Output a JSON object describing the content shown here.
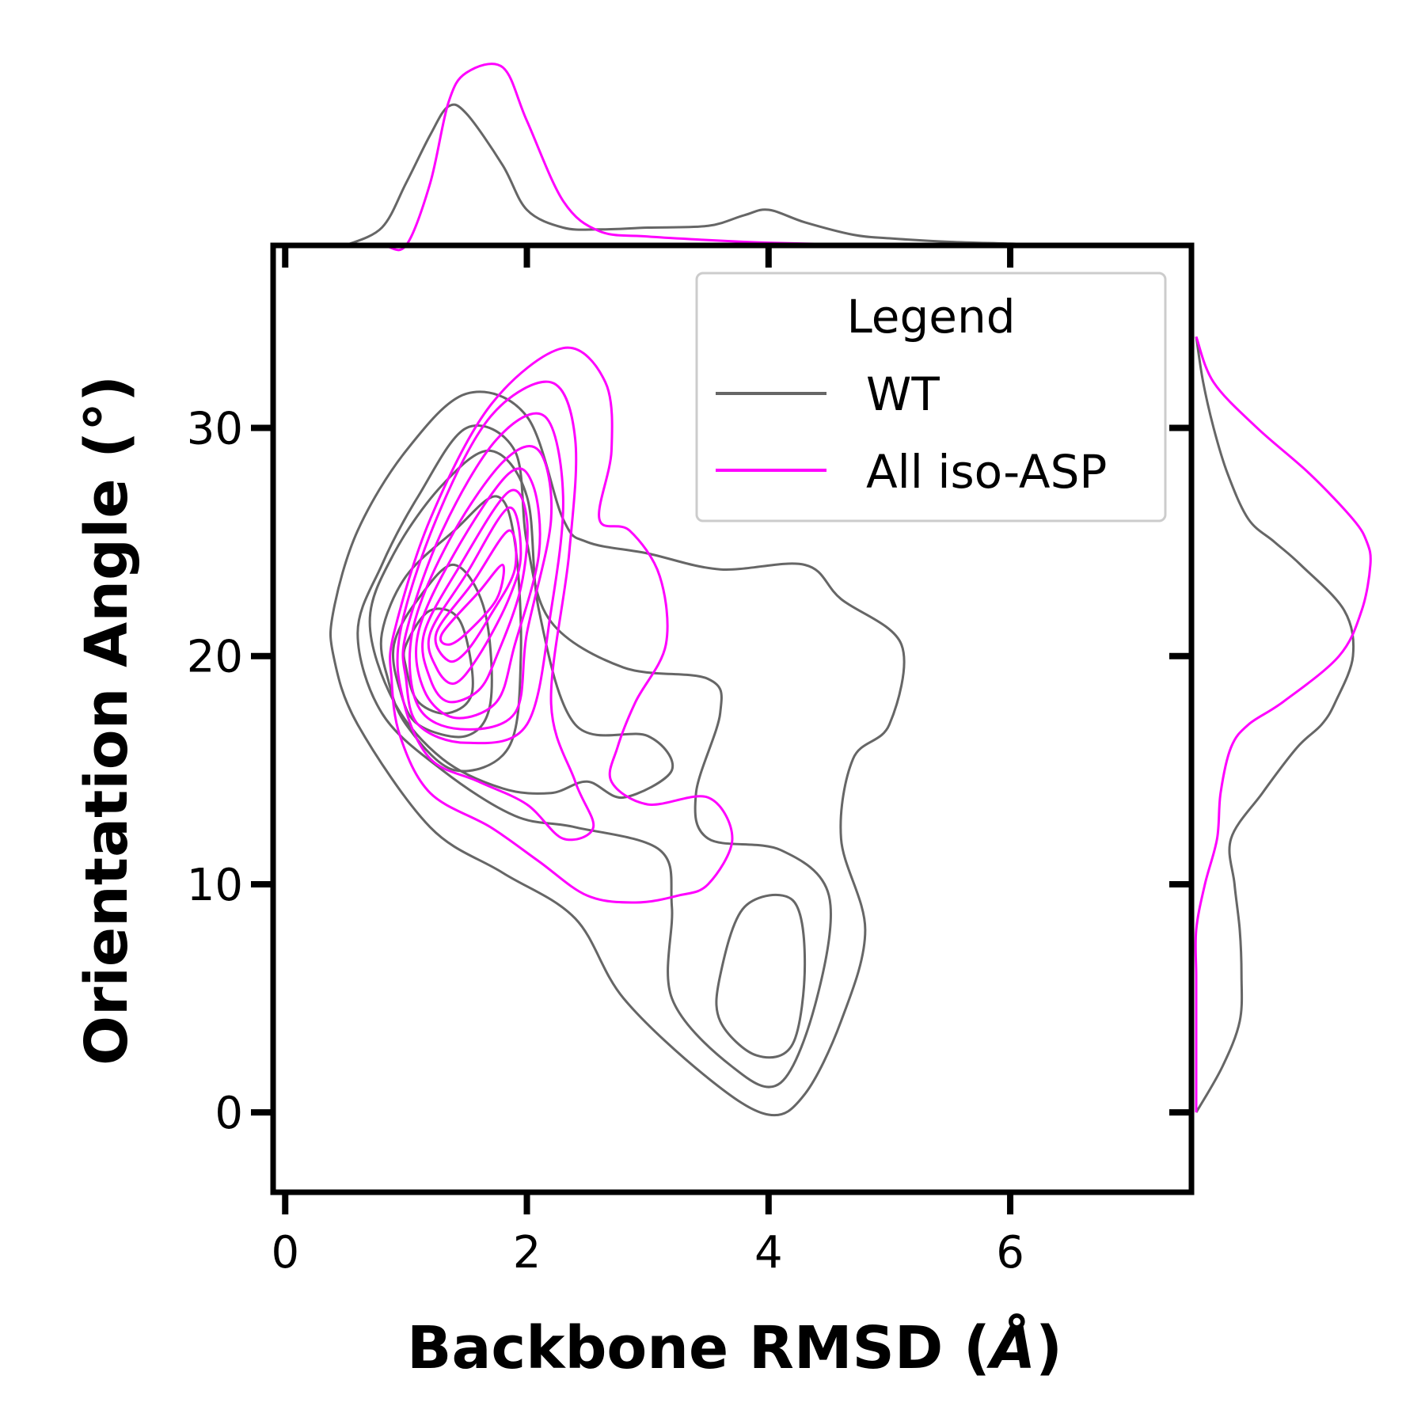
{
  "chart_data": {
    "type": "contour",
    "xlabel": "Backbone RMSD (",
    "xlabel_unit": "Å",
    "xlabel_close": ")",
    "ylabel": "Orientation Angle (°)",
    "xlim": [
      -0.1,
      7.5
    ],
    "ylim": [
      -3.5,
      38
    ],
    "xticks": [
      0,
      2,
      4,
      6
    ],
    "yticks": [
      0,
      10,
      20,
      30
    ],
    "grid": false,
    "legend": {
      "title": "Legend",
      "placement": "top-right",
      "entries": [
        {
          "label": "WT",
          "color": "#666666"
        },
        {
          "label": "All iso-ASP",
          "color": "#ff00ff"
        }
      ]
    },
    "series": [
      {
        "name": "WT",
        "color": "#666666",
        "contours": [
          [
            [
              0.4,
              22
            ],
            [
              0.6,
              25.5
            ],
            [
              1.0,
              29
            ],
            [
              1.5,
              31.5
            ],
            [
              2.0,
              30.5
            ],
            [
              2.3,
              26
            ],
            [
              2.5,
              25
            ],
            [
              3.0,
              24.5
            ],
            [
              3.6,
              23.8
            ],
            [
              4.3,
              24
            ],
            [
              4.6,
              22.5
            ],
            [
              5.1,
              20.5
            ],
            [
              5.0,
              17
            ],
            [
              4.7,
              15.5
            ],
            [
              4.6,
              12
            ],
            [
              4.8,
              8
            ],
            [
              4.6,
              4
            ],
            [
              4.3,
              0.8
            ],
            [
              4.0,
              -0.1
            ],
            [
              3.5,
              1.5
            ],
            [
              2.8,
              5
            ],
            [
              2.4,
              8.5
            ],
            [
              1.8,
              10.5
            ],
            [
              1.2,
              12.5
            ],
            [
              0.6,
              17
            ],
            [
              0.4,
              20
            ]
          ],
          [
            [
              0.6,
              21
            ],
            [
              0.8,
              24
            ],
            [
              1.1,
              27
            ],
            [
              1.5,
              30
            ],
            [
              1.9,
              29
            ],
            [
              2.0,
              25
            ],
            [
              2.2,
              21.5
            ],
            [
              2.8,
              19.5
            ],
            [
              3.5,
              19
            ],
            [
              3.6,
              17.5
            ],
            [
              3.4,
              14
            ],
            [
              3.5,
              12
            ],
            [
              4.1,
              11.5
            ],
            [
              4.5,
              9.5
            ],
            [
              4.4,
              5
            ],
            [
              4.1,
              1.3
            ],
            [
              3.7,
              2
            ],
            [
              3.2,
              5
            ],
            [
              3.2,
              9
            ],
            [
              3.1,
              11.5
            ],
            [
              2.4,
              12.5
            ],
            [
              1.9,
              13
            ],
            [
              1.3,
              15
            ],
            [
              0.8,
              17.5
            ]
          ],
          [
            [
              0.7,
              21.5
            ],
            [
              0.9,
              24.5
            ],
            [
              1.3,
              27.5
            ],
            [
              1.7,
              29
            ],
            [
              2.0,
              27
            ],
            [
              2.1,
              22
            ],
            [
              2.4,
              17
            ],
            [
              3.0,
              16.5
            ],
            [
              3.2,
              15
            ],
            [
              2.8,
              13.8
            ],
            [
              2.5,
              14.5
            ],
            [
              2.2,
              14
            ],
            [
              1.8,
              14.2
            ],
            [
              1.3,
              15.5
            ],
            [
              0.9,
              18
            ]
          ],
          [
            [
              3.6,
              6
            ],
            [
              3.8,
              9
            ],
            [
              4.2,
              9.3
            ],
            [
              4.3,
              6.5
            ],
            [
              4.2,
              3
            ],
            [
              3.9,
              2.5
            ],
            [
              3.6,
              4
            ]
          ],
          [
            [
              0.8,
              21
            ],
            [
              1.0,
              23.5
            ],
            [
              1.4,
              25.5
            ],
            [
              1.75,
              27
            ],
            [
              1.9,
              25
            ],
            [
              1.95,
              20
            ],
            [
              1.85,
              16
            ],
            [
              1.4,
              15
            ],
            [
              1.0,
              17
            ],
            [
              0.85,
              19
            ]
          ],
          [
            [
              0.9,
              20.5
            ],
            [
              1.1,
              22.5
            ],
            [
              1.4,
              24
            ],
            [
              1.65,
              22
            ],
            [
              1.7,
              18
            ],
            [
              1.5,
              16.5
            ],
            [
              1.1,
              17
            ],
            [
              0.95,
              18.5
            ]
          ],
          [
            [
              1.0,
              20.5
            ],
            [
              1.2,
              22
            ],
            [
              1.45,
              21.5
            ],
            [
              1.55,
              18.5
            ],
            [
              1.35,
              17.5
            ],
            [
              1.1,
              18
            ],
            [
              1.0,
              19.5
            ]
          ]
        ]
      },
      {
        "name": "All iso-ASP",
        "color": "#ff00ff",
        "contours": [
          [
            [
              0.9,
              21
            ],
            [
              1.2,
              26
            ],
            [
              1.7,
              31
            ],
            [
              2.3,
              33.5
            ],
            [
              2.65,
              32
            ],
            [
              2.7,
              29
            ],
            [
              2.6,
              26
            ],
            [
              2.85,
              25.5
            ],
            [
              3.1,
              23.5
            ],
            [
              3.15,
              20.5
            ],
            [
              2.9,
              18
            ],
            [
              2.75,
              16
            ],
            [
              2.7,
              14.5
            ],
            [
              3.0,
              13.5
            ],
            [
              3.5,
              13.8
            ],
            [
              3.7,
              12
            ],
            [
              3.5,
              10
            ],
            [
              3.25,
              9.5
            ],
            [
              2.9,
              9.2
            ],
            [
              2.5,
              9.5
            ],
            [
              2.1,
              11
            ],
            [
              1.7,
              12.5
            ],
            [
              1.2,
              14
            ],
            [
              0.95,
              16.5
            ],
            [
              0.88,
              19
            ]
          ],
          [
            [
              0.95,
              21
            ],
            [
              1.25,
              26
            ],
            [
              1.7,
              30.5
            ],
            [
              2.2,
              32
            ],
            [
              2.4,
              29.5
            ],
            [
              2.35,
              24.5
            ],
            [
              2.2,
              18
            ],
            [
              2.4,
              14.5
            ],
            [
              2.55,
              12.5
            ],
            [
              2.3,
              12
            ],
            [
              2.0,
              13.5
            ],
            [
              1.6,
              14.5
            ],
            [
              1.2,
              15.5
            ],
            [
              0.98,
              18
            ]
          ],
          [
            [
              1.0,
              21
            ],
            [
              1.3,
              25.5
            ],
            [
              1.75,
              29.5
            ],
            [
              2.15,
              30.5
            ],
            [
              2.3,
              27
            ],
            [
              2.2,
              22
            ],
            [
              2.0,
              17
            ],
            [
              1.5,
              16.2
            ],
            [
              1.1,
              17
            ],
            [
              1.0,
              19
            ]
          ],
          [
            [
              1.05,
              21
            ],
            [
              1.35,
              25
            ],
            [
              1.8,
              28.5
            ],
            [
              2.1,
              29
            ],
            [
              2.2,
              26
            ],
            [
              2.0,
              21
            ],
            [
              1.9,
              17.5
            ],
            [
              1.45,
              16.8
            ],
            [
              1.1,
              17.8
            ]
          ],
          [
            [
              1.1,
              21
            ],
            [
              1.4,
              24.5
            ],
            [
              1.85,
              28
            ],
            [
              2.05,
              27.5
            ],
            [
              2.1,
              24.5
            ],
            [
              1.9,
              20.5
            ],
            [
              1.75,
              18
            ],
            [
              1.4,
              17.3
            ],
            [
              1.15,
              18.5
            ]
          ],
          [
            [
              1.15,
              21
            ],
            [
              1.45,
              24
            ],
            [
              1.85,
              27.2
            ],
            [
              2.0,
              26
            ],
            [
              1.95,
              23
            ],
            [
              1.75,
              20
            ],
            [
              1.6,
              18.5
            ],
            [
              1.35,
              18
            ],
            [
              1.2,
              19
            ]
          ],
          [
            [
              1.2,
              21
            ],
            [
              1.5,
              23.6
            ],
            [
              1.85,
              26.5
            ],
            [
              1.95,
              24.5
            ],
            [
              1.85,
              22.5
            ],
            [
              1.6,
              20
            ],
            [
              1.4,
              18.8
            ],
            [
              1.25,
              19.5
            ]
          ],
          [
            [
              1.25,
              21
            ],
            [
              1.55,
              23.2
            ],
            [
              1.85,
              25.5
            ],
            [
              1.9,
              23.8
            ],
            [
              1.7,
              21.8
            ],
            [
              1.5,
              20.2
            ],
            [
              1.35,
              19.8
            ]
          ],
          [
            [
              1.3,
              21
            ],
            [
              1.6,
              22.8
            ],
            [
              1.8,
              24
            ],
            [
              1.75,
              22.5
            ],
            [
              1.5,
              21
            ],
            [
              1.35,
              20.5
            ]
          ]
        ]
      }
    ],
    "marginal_x": {
      "x": [
        0.5,
        0.8,
        1.0,
        1.2,
        1.35,
        1.5,
        1.8,
        2.0,
        2.3,
        2.6,
        3.0,
        3.5,
        3.8,
        4.0,
        4.3,
        4.7,
        5.0,
        5.5,
        6.0,
        6.5,
        7.5
      ],
      "series": [
        {
          "name": "WT",
          "color": "#666666",
          "values": [
            0.0,
            0.1,
            0.35,
            0.62,
            0.78,
            0.74,
            0.45,
            0.2,
            0.1,
            0.09,
            0.1,
            0.11,
            0.17,
            0.2,
            0.13,
            0.06,
            0.04,
            0.02,
            0.01,
            0.0,
            0.0
          ]
        },
        {
          "name": "All iso-ASP",
          "color": "#ff00ff",
          "values": [
            0.0,
            0.0,
            0.0,
            0.35,
            0.8,
            0.97,
            1.0,
            0.7,
            0.25,
            0.08,
            0.05,
            0.03,
            0.02,
            0.015,
            0.01,
            0.005,
            0.0,
            0.0,
            0.0,
            0.0,
            0.0
          ]
        }
      ]
    },
    "marginal_y": {
      "y": [
        0,
        2,
        4,
        6,
        8,
        10,
        12,
        14,
        16,
        17,
        18,
        20,
        22,
        24,
        25,
        26,
        28,
        30,
        32,
        34
      ],
      "series": [
        {
          "name": "WT",
          "color": "#666666",
          "values": [
            0.0,
            0.15,
            0.25,
            0.26,
            0.25,
            0.22,
            0.2,
            0.38,
            0.58,
            0.72,
            0.8,
            0.9,
            0.85,
            0.6,
            0.45,
            0.3,
            0.18,
            0.1,
            0.04,
            0.0
          ]
        },
        {
          "name": "All iso-ASP",
          "color": "#ff00ff",
          "values": [
            0.0,
            0.0,
            0.0,
            0.0,
            0.0,
            0.05,
            0.12,
            0.14,
            0.2,
            0.3,
            0.5,
            0.82,
            0.95,
            1.0,
            0.98,
            0.9,
            0.65,
            0.35,
            0.1,
            0.0
          ]
        }
      ]
    }
  }
}
